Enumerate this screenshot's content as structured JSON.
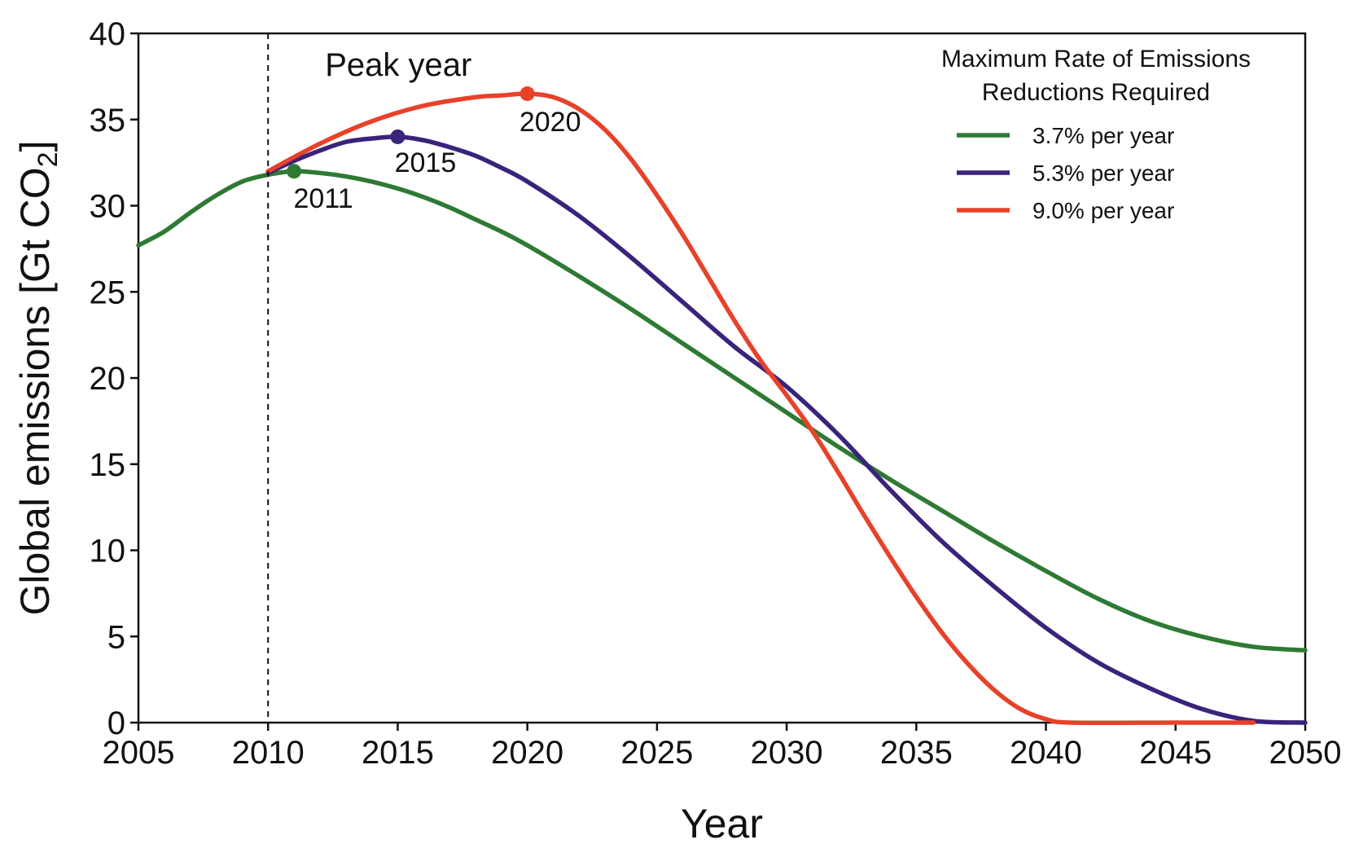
{
  "chart_data": {
    "type": "line",
    "xlabel": "Year",
    "ylabel_main": "Global emissions [Gt CO",
    "ylabel_sub": "2",
    "ylabel_end": "]",
    "xlim": [
      2005,
      2050
    ],
    "ylim": [
      0,
      40
    ],
    "xticks": [
      2005,
      2010,
      2015,
      2020,
      2025,
      2030,
      2035,
      2040,
      2045,
      2050
    ],
    "yticks": [
      0,
      5,
      10,
      15,
      20,
      25,
      30,
      35,
      40
    ],
    "grid": false,
    "legend_position": "top-right",
    "legend_title_lines": [
      "Maximum Rate of Emissions",
      "Reductions Required"
    ],
    "annotations": [
      {
        "text": "Peak year",
        "x": 2010
      }
    ],
    "reference_line": {
      "x": 2010,
      "style": "dashed"
    },
    "series": [
      {
        "name": "3.7% per year",
        "color": "#2e7a34",
        "peak": {
          "x": 2011,
          "y": 32,
          "label": "2011"
        },
        "points": [
          [
            2005,
            27.7
          ],
          [
            2006,
            28.5
          ],
          [
            2007,
            29.6
          ],
          [
            2008,
            30.6
          ],
          [
            2009,
            31.4
          ],
          [
            2010,
            31.8
          ],
          [
            2011,
            32.0
          ],
          [
            2012,
            31.9
          ],
          [
            2013,
            31.7
          ],
          [
            2014,
            31.4
          ],
          [
            2015,
            31.0
          ],
          [
            2016,
            30.5
          ],
          [
            2017,
            29.9
          ],
          [
            2018,
            29.2
          ],
          [
            2019,
            28.5
          ],
          [
            2020,
            27.7
          ],
          [
            2022,
            25.9
          ],
          [
            2024,
            24.0
          ],
          [
            2026,
            22.0
          ],
          [
            2028,
            20.0
          ],
          [
            2030,
            18.0
          ],
          [
            2032,
            16.0
          ],
          [
            2034,
            14.1
          ],
          [
            2036,
            12.3
          ],
          [
            2038,
            10.5
          ],
          [
            2040,
            8.8
          ],
          [
            2042,
            7.2
          ],
          [
            2044,
            5.9
          ],
          [
            2046,
            5.0
          ],
          [
            2048,
            4.4
          ],
          [
            2050,
            4.2
          ]
        ]
      },
      {
        "name": "5.3% per year",
        "color": "#3a237a",
        "peak": {
          "x": 2015,
          "y": 34,
          "label": "2015"
        },
        "points": [
          [
            2010,
            31.9
          ],
          [
            2011,
            32.6
          ],
          [
            2012,
            33.2
          ],
          [
            2013,
            33.7
          ],
          [
            2014,
            33.9
          ],
          [
            2015,
            34.0
          ],
          [
            2016,
            33.8
          ],
          [
            2017,
            33.4
          ],
          [
            2018,
            32.9
          ],
          [
            2019,
            32.2
          ],
          [
            2020,
            31.4
          ],
          [
            2022,
            29.4
          ],
          [
            2024,
            27.0
          ],
          [
            2026,
            24.4
          ],
          [
            2028,
            21.8
          ],
          [
            2030,
            19.5
          ],
          [
            2032,
            16.7
          ],
          [
            2034,
            13.5
          ],
          [
            2036,
            10.5
          ],
          [
            2038,
            7.9
          ],
          [
            2040,
            5.5
          ],
          [
            2042,
            3.5
          ],
          [
            2044,
            2.0
          ],
          [
            2046,
            0.8
          ],
          [
            2048,
            0.1
          ],
          [
            2050,
            0.0
          ]
        ]
      },
      {
        "name": "9.0% per year",
        "color": "#e8412a",
        "peak": {
          "x": 2020,
          "y": 36.5,
          "label": "2020"
        },
        "points": [
          [
            2010,
            32.0
          ],
          [
            2012,
            33.6
          ],
          [
            2014,
            34.9
          ],
          [
            2016,
            35.8
          ],
          [
            2018,
            36.3
          ],
          [
            2019,
            36.4
          ],
          [
            2020,
            36.5
          ],
          [
            2021,
            36.3
          ],
          [
            2022,
            35.6
          ],
          [
            2023,
            34.4
          ],
          [
            2024,
            32.7
          ],
          [
            2025,
            30.6
          ],
          [
            2026,
            28.3
          ],
          [
            2027,
            25.8
          ],
          [
            2028,
            23.3
          ],
          [
            2029,
            21.0
          ],
          [
            2030,
            19.0
          ],
          [
            2031,
            16.9
          ],
          [
            2032,
            14.5
          ],
          [
            2033,
            12.0
          ],
          [
            2034,
            9.6
          ],
          [
            2035,
            7.3
          ],
          [
            2036,
            5.2
          ],
          [
            2037,
            3.4
          ],
          [
            2038,
            1.9
          ],
          [
            2039,
            0.8
          ],
          [
            2040,
            0.2
          ],
          [
            2041,
            0.0
          ],
          [
            2045,
            0.0
          ],
          [
            2048,
            0.0
          ]
        ]
      }
    ]
  }
}
